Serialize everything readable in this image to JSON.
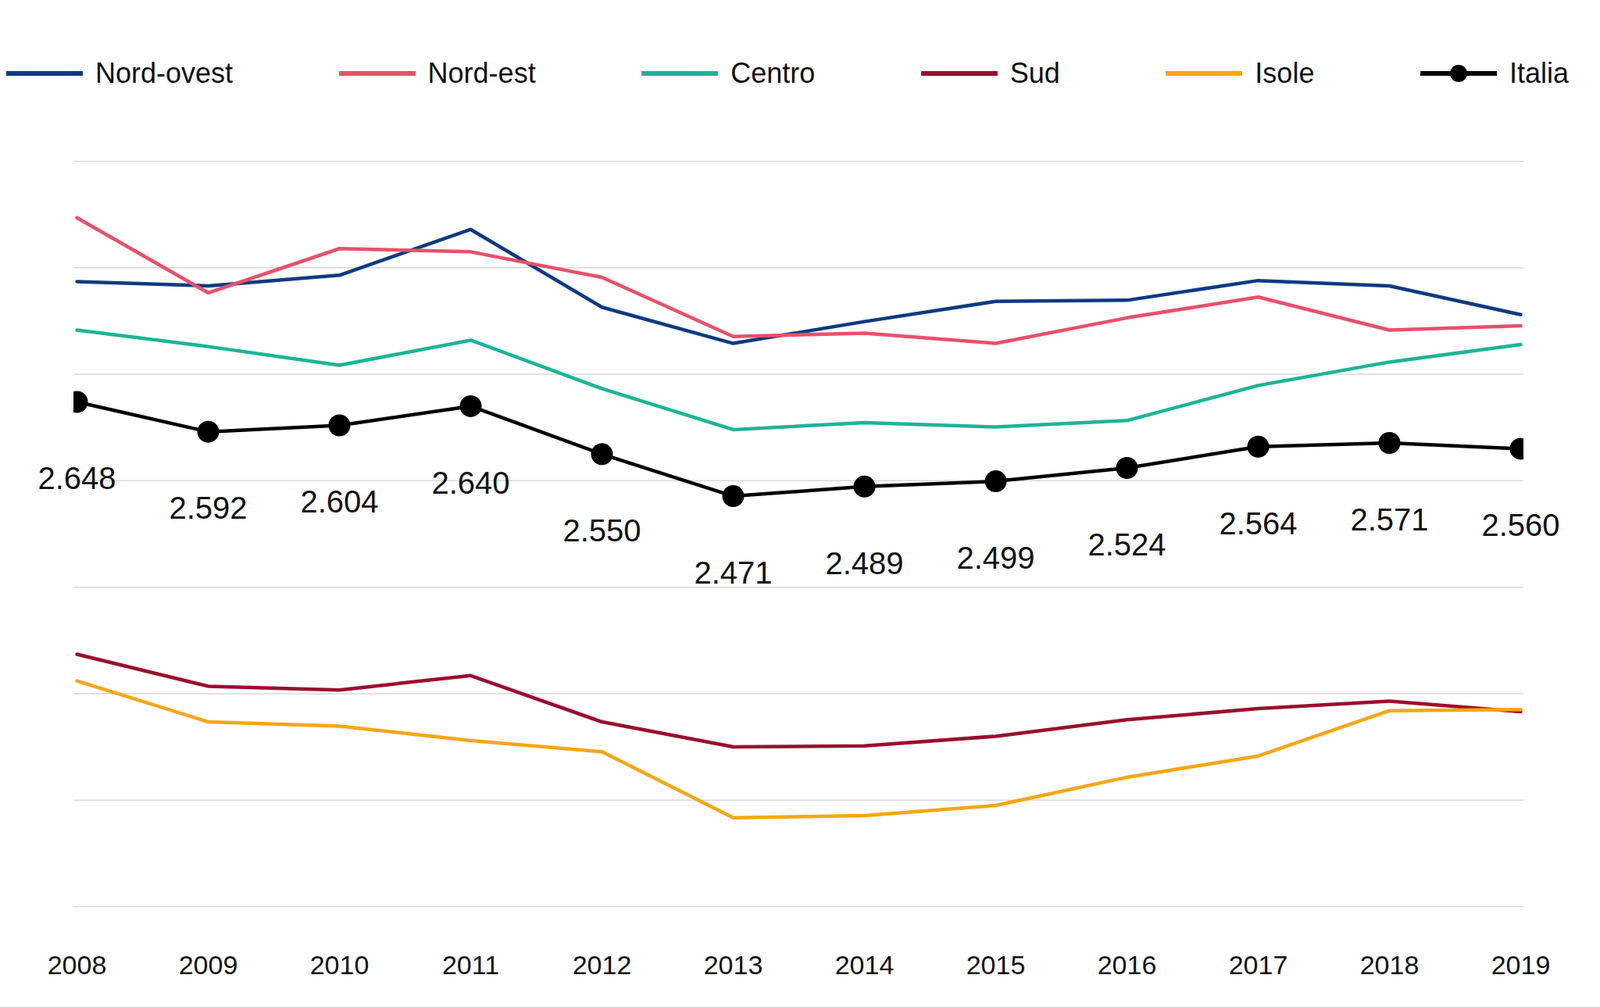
{
  "chart_data": {
    "type": "line",
    "categories": [
      "2008",
      "2009",
      "2010",
      "2011",
      "2012",
      "2013",
      "2014",
      "2015",
      "2016",
      "2017",
      "2018",
      "2019"
    ],
    "ylim": [
      1.7,
      3.1
    ],
    "yticks": [
      1.7,
      1.9,
      2.1,
      2.3,
      2.5,
      2.7,
      2.9,
      3.1
    ],
    "grid": true,
    "tick_labels": "x",
    "legend": "top",
    "series": [
      {
        "name": "Nord-ovest",
        "color": "#0d3b82",
        "values": [
          2.874,
          2.866,
          2.886,
          2.972,
          2.826,
          2.758,
          2.799,
          2.837,
          2.839,
          2.876,
          2.866,
          2.812
        ]
      },
      {
        "name": "Nord-est",
        "color": "#e8506a",
        "values": [
          2.994,
          2.853,
          2.936,
          2.93,
          2.882,
          2.771,
          2.777,
          2.758,
          2.806,
          2.845,
          2.783,
          2.791
        ]
      },
      {
        "name": "Centro",
        "color": "#1ab597",
        "values": [
          2.783,
          2.752,
          2.717,
          2.764,
          2.673,
          2.596,
          2.609,
          2.601,
          2.613,
          2.679,
          2.723,
          2.756
        ]
      },
      {
        "name": "Sud",
        "color": "#9b0e2e",
        "values": [
          2.174,
          2.114,
          2.107,
          2.134,
          2.047,
          2.0,
          2.002,
          2.02,
          2.051,
          2.072,
          2.086,
          2.066
        ]
      },
      {
        "name": "Isole",
        "color": "#f7a614",
        "values": [
          2.124,
          2.047,
          2.039,
          2.012,
          1.991,
          1.867,
          1.871,
          1.89,
          1.943,
          1.983,
          2.068,
          2.07
        ]
      },
      {
        "name": "Italia",
        "color": "#000000",
        "marker": "circle",
        "data_labels": true,
        "values": [
          2.648,
          2.592,
          2.604,
          2.64,
          2.55,
          2.471,
          2.489,
          2.499,
          2.524,
          2.564,
          2.571,
          2.56
        ],
        "value_labels": [
          "2.648",
          "2.592",
          "2.604",
          "2.640",
          "2.550",
          "2.471",
          "2.489",
          "2.499",
          "2.524",
          "2.564",
          "2.571",
          "2.560"
        ]
      }
    ]
  }
}
